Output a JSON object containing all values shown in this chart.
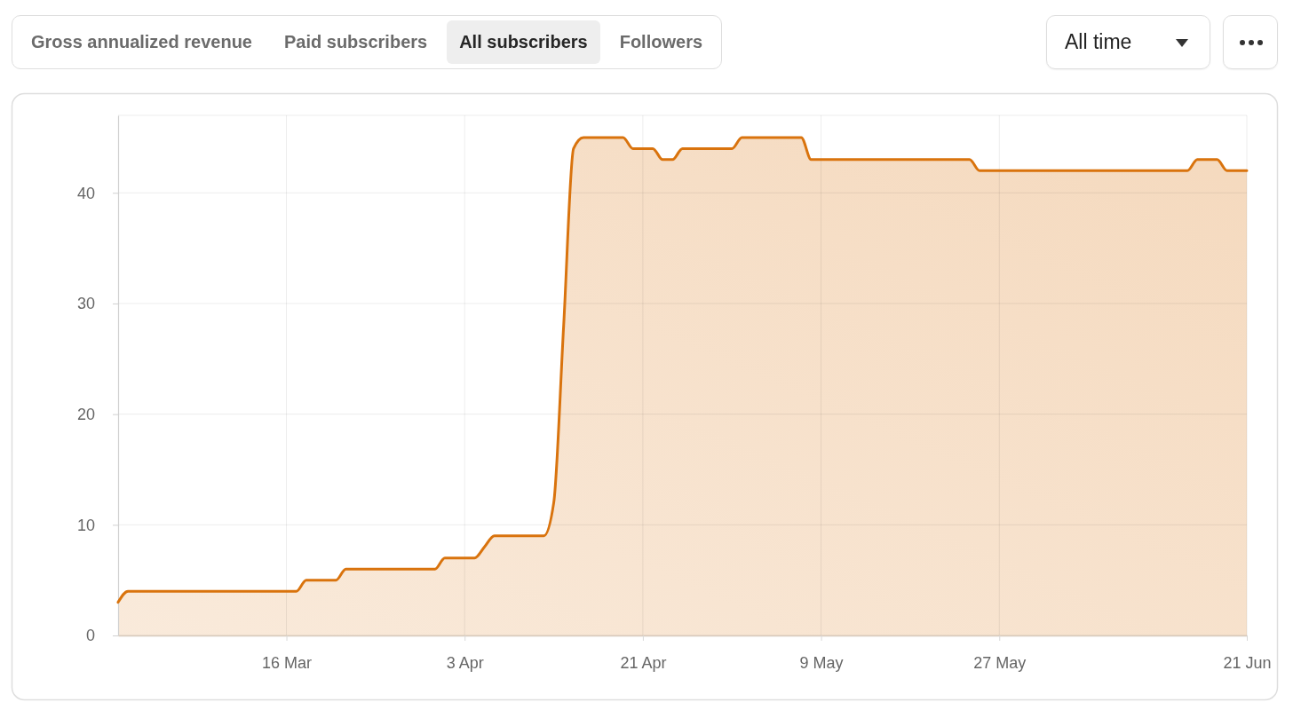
{
  "chart_data": {
    "type": "area",
    "annotations": [
      "Gross annualized revenue",
      "Paid subscribers",
      "All subscribers",
      "Followers",
      "All time"
    ],
    "x": [
      "--02-27",
      "--02-28",
      "--03-17",
      "--03-18",
      "--03-21",
      "--03-22",
      "--03-31",
      "--04-01",
      "--04-04",
      "--04-05",
      "--04-06",
      "--04-11",
      "--04-12",
      "--04-13",
      "--04-14",
      "--04-15",
      "--04-19",
      "--04-20",
      "--04-22",
      "--04-23",
      "--04-24",
      "--04-25",
      "--04-30",
      "--05-01",
      "--05-07",
      "--05-08",
      "--05-24",
      "--05-25",
      "--06-15",
      "--06-16",
      "--06-18",
      "--06-19",
      "--06-21"
    ],
    "values": [
      3,
      4,
      4,
      5,
      5,
      6,
      6,
      7,
      7,
      8,
      9,
      9,
      12,
      28,
      44,
      45,
      45,
      44,
      44,
      43,
      43,
      44,
      44,
      45,
      45,
      43,
      43,
      42,
      42,
      43,
      43,
      42,
      42
    ],
    "color": "#d9730d",
    "xlim": [
      "--02-27",
      "--06-21"
    ],
    "xticks": [
      {
        "value": "--03-16",
        "label": "16 Mar"
      },
      {
        "value": "--04-03",
        "label": "3 Apr"
      },
      {
        "value": "--04-21",
        "label": "21 Apr"
      },
      {
        "value": "--05-09",
        "label": "9 May"
      },
      {
        "value": "--05-27",
        "label": "27 May"
      },
      {
        "value": "--06-21",
        "label": "21 Jun"
      }
    ],
    "ylim": [
      0,
      47
    ],
    "yticks": [
      0,
      10,
      20,
      30,
      40
    ],
    "grid": true
  }
}
